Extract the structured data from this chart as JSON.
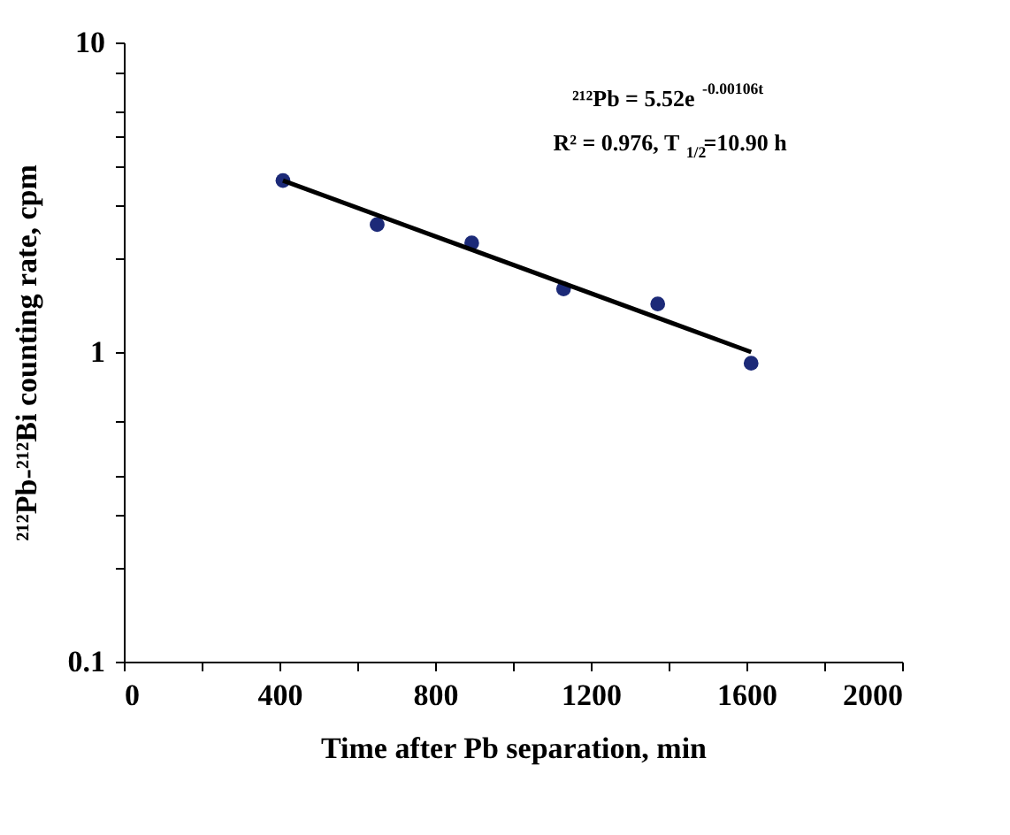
{
  "chart_data": {
    "type": "scatter",
    "xlabel": "Time after Pb separation, min",
    "ylabel": "²¹²Pb-²¹²Bi counting rate, cpm",
    "log": "y",
    "grid": false,
    "xlim": [
      0,
      2000
    ],
    "xticks": [
      0,
      {
        "value": 200,
        "label": null
      },
      400,
      {
        "value": 600,
        "label": null
      },
      800,
      {
        "value": 1000,
        "label": null
      },
      1200,
      {
        "value": 1400,
        "label": null
      },
      1600,
      {
        "value": 1800,
        "label": null
      },
      2000
    ],
    "ylim": [
      0.1,
      10
    ],
    "yticks": [
      0.1,
      {
        "value": 0.2,
        "label": null
      },
      {
        "value": 0.3,
        "label": null
      },
      {
        "value": 0.4,
        "label": null
      },
      {
        "value": 0.6,
        "label": null
      },
      1,
      {
        "value": 2,
        "label": null
      },
      {
        "value": 3,
        "label": null
      },
      {
        "value": 4,
        "label": null
      },
      {
        "value": 5,
        "label": null
      },
      {
        "value": 6,
        "label": null
      },
      {
        "value": 8,
        "label": null
      },
      10
    ],
    "annotations": [
      "²¹²Pb = 5.52e$^{-0.00106t}$",
      "R² = 0.976, T$_{1/2}$=10.90 h"
    ],
    "series": [
      {
        "marker": "circle",
        "color": "#1c2a78",
        "x": [
          409,
          651,
          894,
          1130,
          1372,
          1612
        ],
        "values": [
          3.58,
          2.58,
          2.25,
          1.6,
          1.43,
          0.92
        ]
      },
      {
        "type": "line",
        "marker": "none",
        "color": "#000000",
        "x": [
          409,
          1612
        ],
        "values": [
          3.58,
          1.0
        ]
      }
    ]
  }
}
